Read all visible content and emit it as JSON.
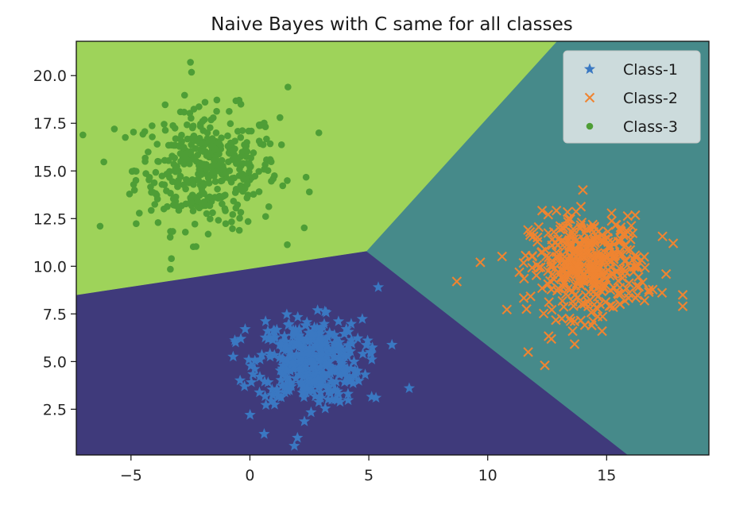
{
  "chart_data": {
    "type": "scatter",
    "title": "Naive Bayes with C same for all classes",
    "xlabel": "",
    "ylabel": "",
    "xlim": [
      -7.3,
      19.3
    ],
    "ylim": [
      0.1,
      21.8
    ],
    "x_ticks": [
      -5,
      0,
      5,
      10,
      15
    ],
    "x_tick_labels": [
      "−5",
      "0",
      "5",
      "10",
      "15"
    ],
    "y_ticks": [
      2.5,
      5.0,
      7.5,
      10.0,
      12.5,
      15.0,
      17.5,
      20.0
    ],
    "y_tick_labels": [
      "2.5",
      "5.0",
      "7.5",
      "10.0",
      "12.5",
      "15.0",
      "17.5",
      "20.0"
    ],
    "grid": false,
    "legend_position": "top-right",
    "decision_regions": [
      {
        "class": "Class-1",
        "color": "#3f3a7b",
        "polygon": [
          [
            -7.3,
            0.1
          ],
          [
            15.9,
            0.1
          ],
          [
            4.9,
            10.8
          ],
          [
            -7.3,
            8.5
          ]
        ]
      },
      {
        "class": "Class-2",
        "color": "#468a8a",
        "polygon": [
          [
            4.9,
            10.8
          ],
          [
            15.9,
            0.1
          ],
          [
            19.3,
            0.1
          ],
          [
            19.3,
            21.8
          ],
          [
            12.9,
            21.8
          ]
        ]
      },
      {
        "class": "Class-3",
        "color": "#9ed35a",
        "polygon": [
          [
            -7.3,
            8.5
          ],
          [
            4.9,
            10.8
          ],
          [
            12.9,
            21.8
          ],
          [
            -7.3,
            21.8
          ]
        ]
      }
    ],
    "series": [
      {
        "name": "Class-1",
        "marker": "star",
        "color": "#3a78c2",
        "center": [
          2.5,
          5.0
        ],
        "spread": [
          1.1,
          1.1
        ],
        "count": 400,
        "extremes": [
          [
            -0.6,
            6.0
          ],
          [
            5.4,
            8.9
          ],
          [
            6.7,
            3.6
          ],
          [
            2.0,
            1.0
          ],
          [
            0.6,
            1.2
          ],
          [
            -0.2,
            6.7
          ],
          [
            5.3,
            3.1
          ]
        ]
      },
      {
        "name": "Class-2",
        "marker": "x",
        "color": "#ef8431",
        "center": [
          14.2,
          10.0
        ],
        "spread": [
          1.2,
          1.3
        ],
        "count": 400,
        "extremes": [
          [
            8.7,
            9.2
          ],
          [
            18.2,
            8.5
          ],
          [
            18.2,
            7.9
          ],
          [
            12.4,
            4.8
          ],
          [
            14.0,
            14.0
          ],
          [
            11.7,
            5.5
          ],
          [
            17.8,
            11.2
          ]
        ]
      },
      {
        "name": "Class-3",
        "marker": "dot",
        "color": "#4e9e36",
        "center": [
          -1.8,
          15.1
        ],
        "spread": [
          1.5,
          1.55
        ],
        "count": 400,
        "extremes": [
          [
            -6.3,
            12.1
          ],
          [
            -2.5,
            20.7
          ],
          [
            1.6,
            19.4
          ],
          [
            -5.7,
            17.2
          ],
          [
            2.9,
            17.0
          ],
          [
            -3.3,
            10.4
          ],
          [
            2.5,
            13.9
          ]
        ]
      }
    ]
  }
}
